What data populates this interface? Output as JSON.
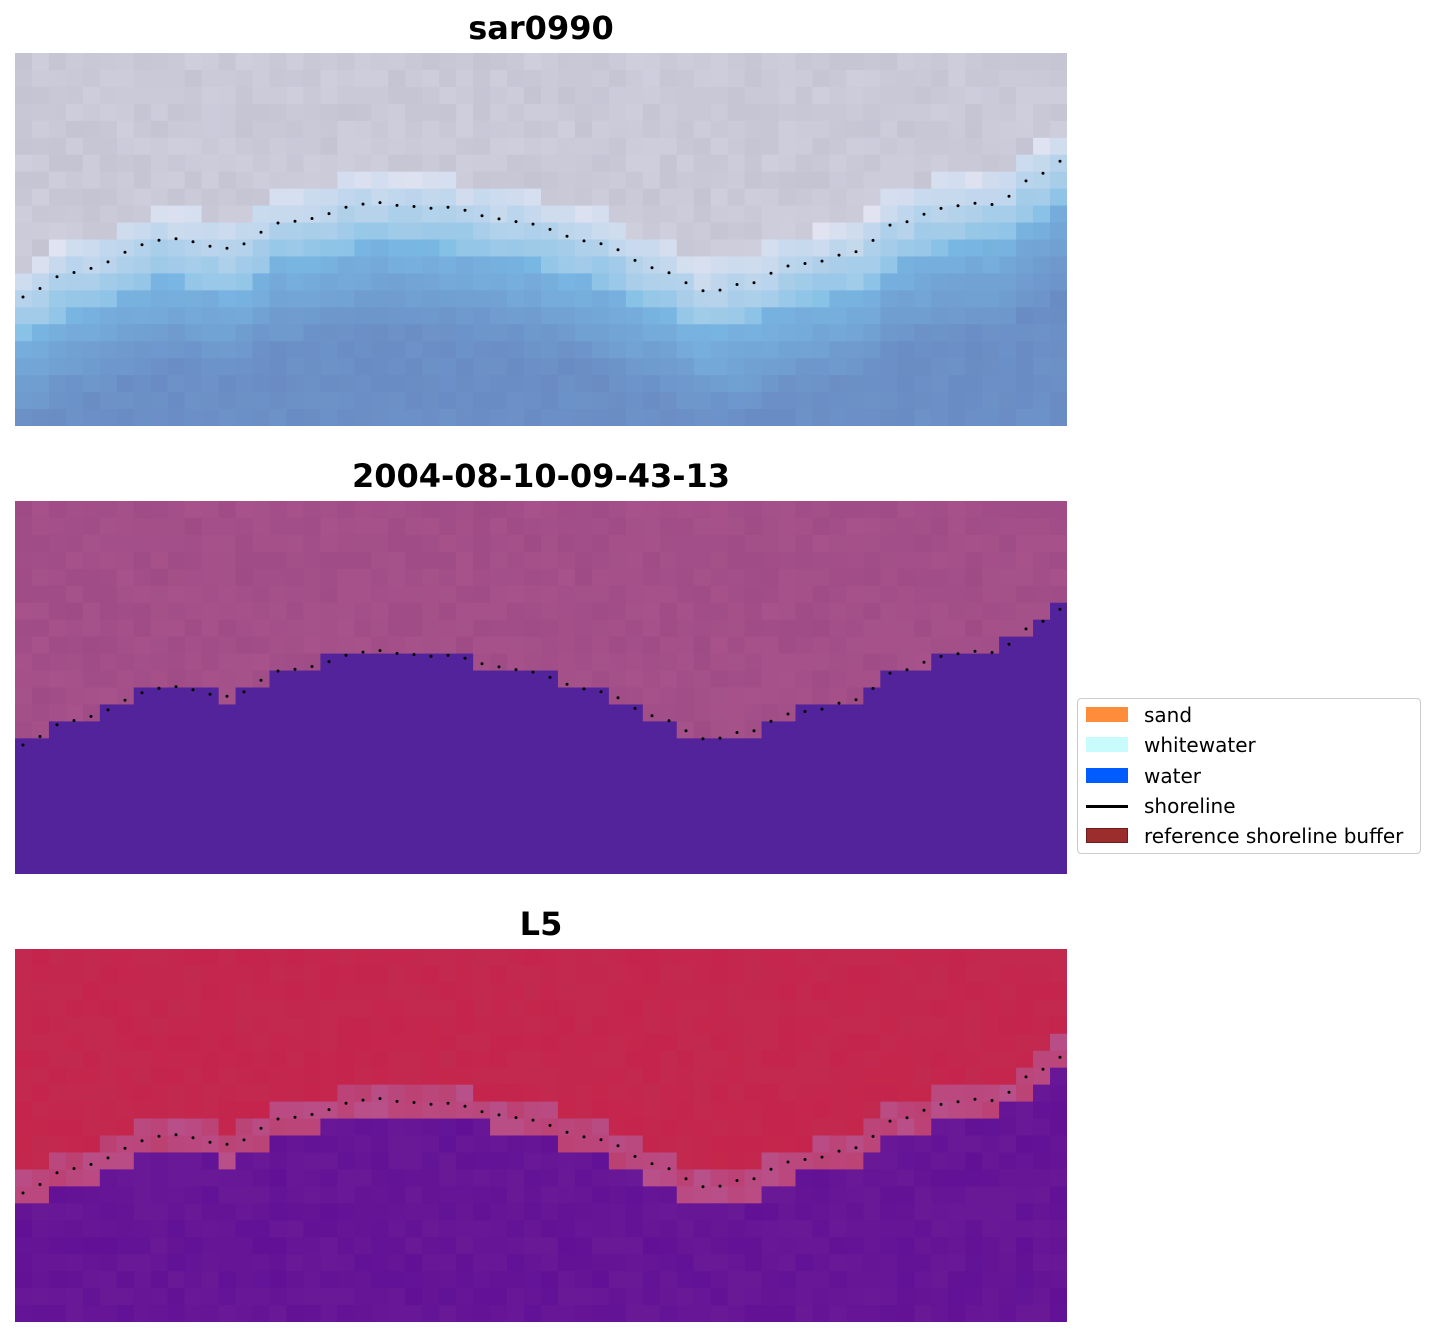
{
  "panels": [
    {
      "title": "sar0990",
      "style": "rgb"
    },
    {
      "title": "2004-08-10-09-43-13",
      "style": "classified"
    },
    {
      "title": "L5",
      "style": "index"
    }
  ],
  "colors": {
    "rgb_land": "#c3c3d2",
    "rgb_water": "#6b8fc6",
    "classified_land": "#9e4b86",
    "classified_water": "#52239a",
    "index_land": "#c22a50",
    "index_water": "#6b1a96",
    "index_band": "#b8508a",
    "shoreline_points": "#000000"
  },
  "legend": [
    {
      "label": "sand",
      "color": "#ff8c3a",
      "kind": "patch"
    },
    {
      "label": "whitewater",
      "color": "#c8fcfc",
      "kind": "patch"
    },
    {
      "label": "water",
      "color": "#005cff",
      "kind": "patch"
    },
    {
      "label": "shoreline",
      "color": "#000000",
      "kind": "line"
    },
    {
      "label": "reference shoreline buffer",
      "color": "#9b2d2d",
      "kind": "patch"
    }
  ]
}
